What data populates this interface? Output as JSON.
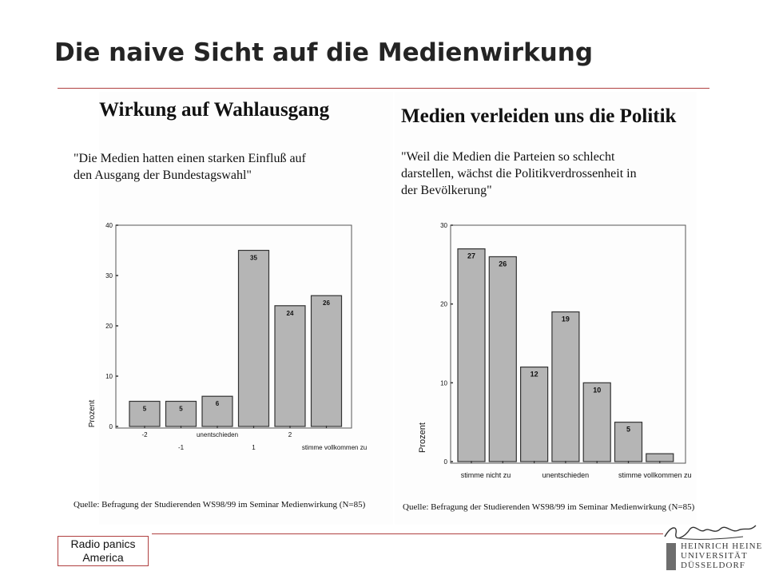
{
  "slide": {
    "title": "Die naive Sicht auf die Medienwirkung",
    "footer_lines": [
      "Radio panics",
      "America"
    ],
    "logo_lines": [
      "HEINRICH HEINE",
      "UNIVERSITÄT",
      "DÜSSELDORF"
    ]
  },
  "chart_data": [
    {
      "type": "bar",
      "title": "Wirkung auf Wahlausgang",
      "subtitle": "\"Die Medien hatten einen starken Einfluß auf den Ausgang der Bundestagswahl\"",
      "subtitle_lines": [
        "\"Die Medien hatten einen starken Einfluß auf",
        "den Ausgang der Bundestagswahl\""
      ],
      "ylabel": "Prozent",
      "ylim": [
        0,
        40
      ],
      "yticks": [
        0,
        10,
        20,
        30,
        40
      ],
      "categories": [
        "-2",
        "-1",
        "unentschieden",
        "1",
        "2",
        "stimme vollkommen zu"
      ],
      "values": [
        5,
        5,
        6,
        35,
        24,
        26
      ],
      "grid": false,
      "source": "Quelle: Befragung der Studierenden WS98/99 im Seminar Medienwirkung (N=85)"
    },
    {
      "type": "bar",
      "title": "Medien verleiden uns die Politik",
      "subtitle": "\"Weil die Medien die Parteien so schlecht darstellen, wächst die Politikverdrossenheit in der Bevölkerung\"",
      "subtitle_lines": [
        "\"Weil die Medien die Parteien so schlecht",
        "darstellen, wächst die Politikverdrossenheit in",
        "der Bevölkerung\""
      ],
      "ylabel": "Prozent",
      "ylim": [
        0,
        30
      ],
      "yticks": [
        0,
        10,
        20,
        30
      ],
      "categories": [
        "stimme nicht zu",
        "",
        "",
        "unentschieden",
        "",
        "",
        "stimme vollkommen zu"
      ],
      "values": [
        27,
        26,
        12,
        19,
        10,
        5,
        1
      ],
      "value_labels": [
        "27",
        "26",
        "12",
        "19",
        "10",
        "5",
        ""
      ],
      "grid": false,
      "source": "Quelle: Befragung der Studierenden WS98/99 im Seminar Medienwirkung (N=85)"
    }
  ],
  "colors": {
    "bar": "#b5b5b5",
    "rule": "#b04040",
    "title": "#242424"
  }
}
